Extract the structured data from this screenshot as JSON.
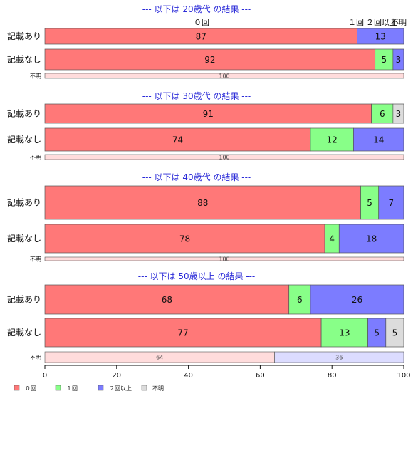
{
  "colors": {
    "0回": "#ff7878",
    "1回": "#88ff88",
    "2回以上": "#7c7cff",
    "不明": "#dcdcdc",
    "unknown_row_a": "#ffdcdc",
    "unknown_row_b": "#dcdcff",
    "title": "#2b2bd8"
  },
  "chart_data": {
    "type": "bar",
    "orientation": "horizontal",
    "stacked": true,
    "xlim": [
      0,
      100
    ],
    "xticks": [
      0,
      20,
      40,
      60,
      80,
      100
    ],
    "grid": false,
    "legend_position": "bottom-left",
    "categories_order": [
      "0回",
      "1回",
      "2回以上",
      "不明"
    ],
    "legend": [
      "０回",
      "１回",
      "２回以上",
      "不明"
    ],
    "header_labels": [
      {
        "text": "０回"
      },
      {
        "text": "１回"
      },
      {
        "text": "２回以上"
      },
      {
        "text": "不明"
      }
    ],
    "groups": [
      {
        "title": "--- 以下は 20歳代 の結果 ---",
        "rows": [
          {
            "label": "記載あり",
            "size": "large",
            "segments": [
              {
                "cat": "0回",
                "value": 87
              },
              {
                "cat": "1回",
                "value": 0
              },
              {
                "cat": "2回以上",
                "value": 13
              },
              {
                "cat": "不明",
                "value": 0
              }
            ]
          },
          {
            "label": "記載なし",
            "size": "large",
            "segments": [
              {
                "cat": "0回",
                "value": 92
              },
              {
                "cat": "1回",
                "value": 5
              },
              {
                "cat": "2回以上",
                "value": 3
              },
              {
                "cat": "不明",
                "value": 0
              }
            ]
          },
          {
            "label": "不明",
            "size": "small",
            "segments": [
              {
                "cat": "unknown_row_a",
                "value": 100
              }
            ]
          }
        ]
      },
      {
        "title": "--- 以下は 30歳代 の結果 ---",
        "rows": [
          {
            "label": "記載あり",
            "size": "large",
            "segments": [
              {
                "cat": "0回",
                "value": 91
              },
              {
                "cat": "1回",
                "value": 6
              },
              {
                "cat": "2回以上",
                "value": 0
              },
              {
                "cat": "不明",
                "value": 3
              }
            ]
          },
          {
            "label": "記載なし",
            "size": "large",
            "segments": [
              {
                "cat": "0回",
                "value": 74
              },
              {
                "cat": "1回",
                "value": 12
              },
              {
                "cat": "2回以上",
                "value": 14
              },
              {
                "cat": "不明",
                "value": 0
              }
            ]
          },
          {
            "label": "不明",
            "size": "small",
            "segments": [
              {
                "cat": "unknown_row_a",
                "value": 100
              }
            ]
          }
        ]
      },
      {
        "title": "--- 以下は 40歳代 の結果 ---",
        "rows": [
          {
            "label": "記載あり",
            "size": "large",
            "segments": [
              {
                "cat": "0回",
                "value": 88
              },
              {
                "cat": "1回",
                "value": 5
              },
              {
                "cat": "2回以上",
                "value": 7
              },
              {
                "cat": "不明",
                "value": 0
              }
            ]
          },
          {
            "label": "記載なし",
            "size": "large",
            "segments": [
              {
                "cat": "0回",
                "value": 78
              },
              {
                "cat": "1回",
                "value": 4
              },
              {
                "cat": "2回以上",
                "value": 18
              },
              {
                "cat": "不明",
                "value": 0
              }
            ]
          },
          {
            "label": "不明",
            "size": "small",
            "segments": [
              {
                "cat": "unknown_row_a",
                "value": 100
              }
            ]
          }
        ]
      },
      {
        "title": "--- 以下は 50歳以上 の結果 ---",
        "rows": [
          {
            "label": "記載あり",
            "size": "large",
            "segments": [
              {
                "cat": "0回",
                "value": 68
              },
              {
                "cat": "1回",
                "value": 6
              },
              {
                "cat": "2回以上",
                "value": 26
              },
              {
                "cat": "不明",
                "value": 0
              }
            ]
          },
          {
            "label": "記載なし",
            "size": "large",
            "segments": [
              {
                "cat": "0回",
                "value": 77
              },
              {
                "cat": "1回",
                "value": 13
              },
              {
                "cat": "2回以上",
                "value": 5
              },
              {
                "cat": "不明",
                "value": 5
              }
            ]
          },
          {
            "label": "不明",
            "size": "small",
            "segments": [
              {
                "cat": "unknown_row_a",
                "value": 64
              },
              {
                "cat": "unknown_row_b",
                "value": 36
              }
            ]
          }
        ]
      }
    ]
  }
}
